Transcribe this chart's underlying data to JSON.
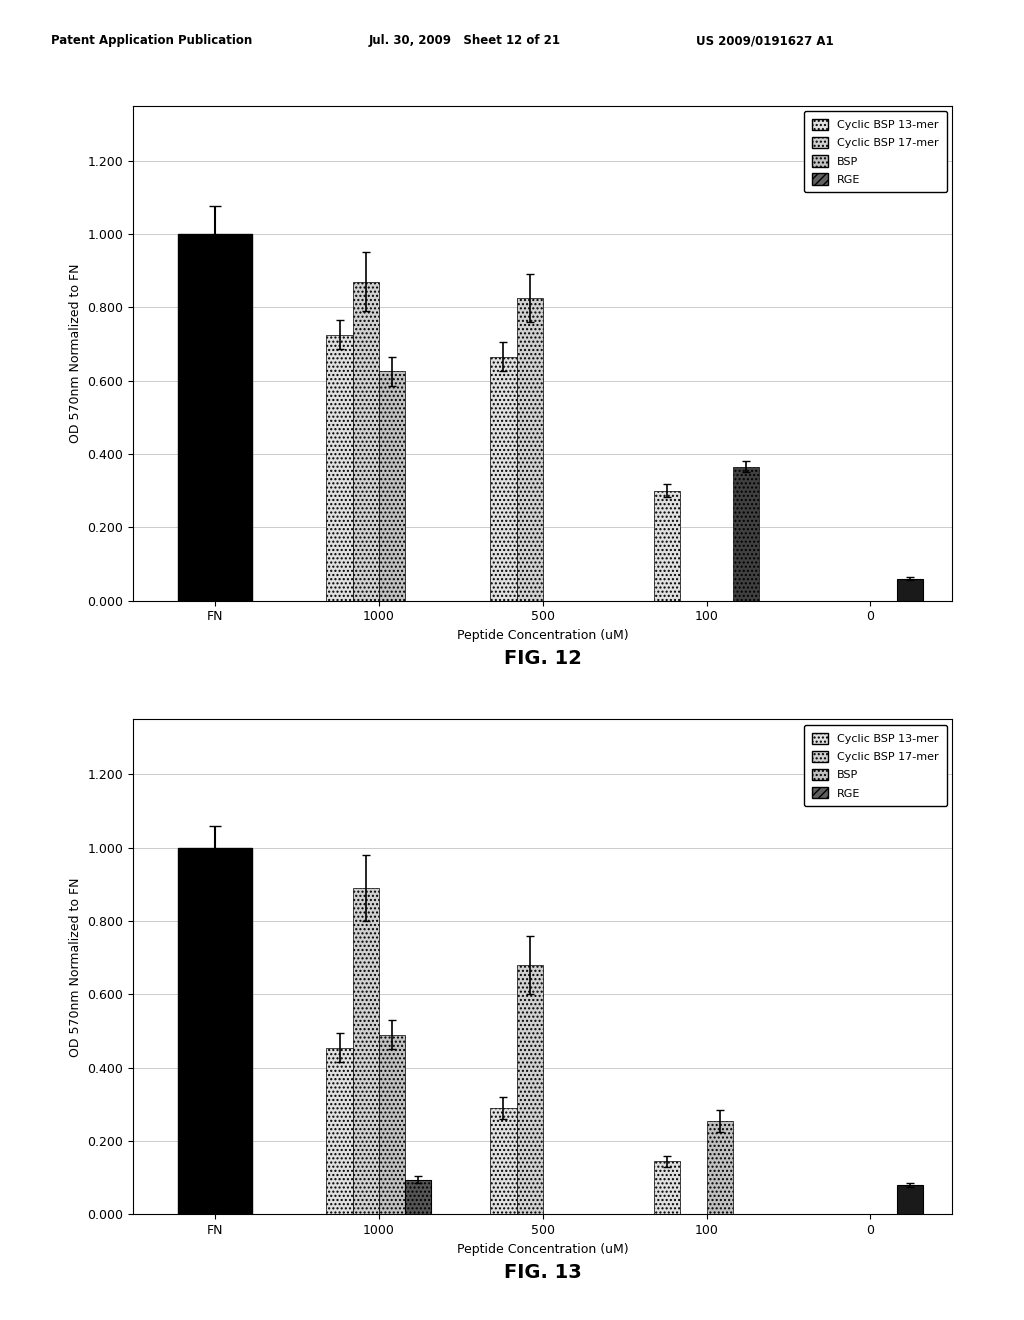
{
  "header_left": "Patent Application Publication",
  "header_mid": "Jul. 30, 2009   Sheet 12 of 21",
  "header_right": "US 2009/0191627 A1",
  "fig12": {
    "title": "FIG. 12",
    "ylabel": "OD 570nm Normalized to FN",
    "xlabel": "Peptide Concentration (uM)",
    "categories": [
      "FN",
      "1000",
      "500",
      "100",
      "0"
    ],
    "fn_value": 1.0,
    "fn_err": 0.075,
    "values": {
      "13mer": [
        null,
        0.725,
        0.665,
        0.3,
        null
      ],
      "17mer": [
        null,
        0.87,
        0.825,
        null,
        null
      ],
      "BSP": [
        null,
        0.625,
        null,
        null,
        null
      ],
      "RGE": [
        null,
        null,
        null,
        0.365,
        0.06
      ]
    },
    "errors": {
      "13mer": [
        null,
        0.04,
        0.04,
        0.018,
        null
      ],
      "17mer": [
        null,
        0.08,
        0.065,
        null,
        null
      ],
      "BSP": [
        null,
        0.04,
        null,
        null,
        null
      ],
      "RGE": [
        null,
        null,
        null,
        0.015,
        0.005
      ]
    },
    "ylim": [
      0,
      1.35
    ],
    "yticks": [
      0.0,
      0.2,
      0.4,
      0.6,
      0.8,
      1.0,
      1.2
    ]
  },
  "fig13": {
    "title": "FIG. 13",
    "ylabel": "OD 570nm Normalized to FN",
    "xlabel": "Peptide Concentration (uM)",
    "categories": [
      "FN",
      "1000",
      "500",
      "100",
      "0"
    ],
    "fn_value": 1.0,
    "fn_err": 0.06,
    "values": {
      "13mer": [
        null,
        0.455,
        0.29,
        0.145,
        null
      ],
      "17mer": [
        null,
        0.89,
        0.68,
        null,
        null
      ],
      "BSP": [
        null,
        0.49,
        null,
        0.255,
        null
      ],
      "RGE": [
        null,
        0.095,
        null,
        null,
        0.08
      ]
    },
    "errors": {
      "13mer": [
        null,
        0.04,
        0.03,
        0.015,
        null
      ],
      "17mer": [
        null,
        0.09,
        0.08,
        null,
        null
      ],
      "BSP": [
        null,
        0.04,
        null,
        0.03,
        null
      ],
      "RGE": [
        null,
        0.01,
        null,
        null,
        0.005
      ]
    },
    "ylim": [
      0,
      1.35
    ],
    "yticks": [
      0.0,
      0.2,
      0.4,
      0.6,
      0.8,
      1.0,
      1.2
    ]
  }
}
